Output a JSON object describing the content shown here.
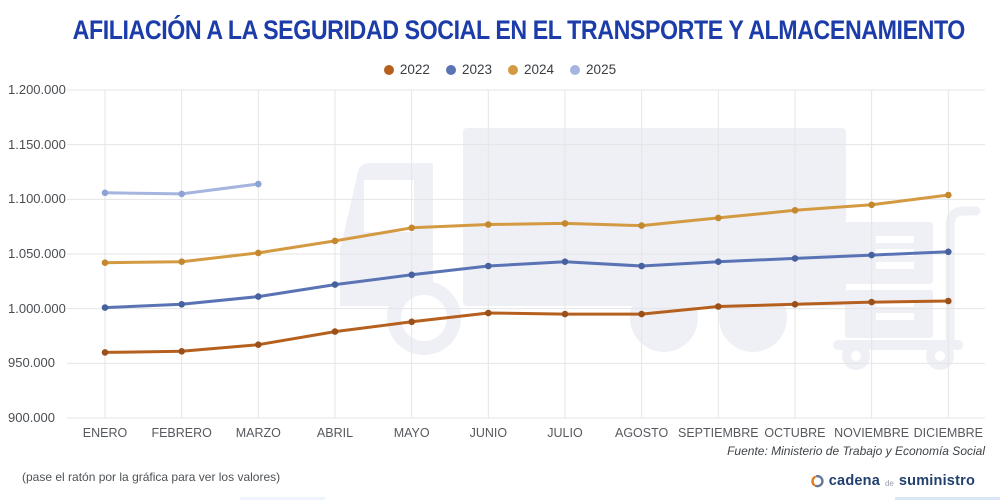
{
  "title": "AFILIACIÓN A LA SEGURIDAD SOCIAL EN EL TRANSPORTE Y ALMACENAMIENTO",
  "hint": "(pase el ratón por la gráfica para ver los valores)",
  "source": "Fuente: Ministerio de Trabajo y Economía Social",
  "logo": {
    "word1": "cadena",
    "word2": "de",
    "word3": "suministro"
  },
  "colors": {
    "title": "#1c3da9",
    "grid": "#e5e5e5",
    "axis_label": "#4a4e52",
    "watermark": "#eef0f6",
    "logo_orange": "#e07b22",
    "logo_slate": "#64789a"
  },
  "chart_data": {
    "type": "line",
    "categories": [
      "ENERO",
      "FEBRERO",
      "MARZO",
      "ABRIL",
      "MAYO",
      "JUNIO",
      "JULIO",
      "AGOSTO",
      "SEPTIEMBRE",
      "OCTUBRE",
      "NOVIEMBRE",
      "DICIEMBRE"
    ],
    "series": [
      {
        "name": "2022",
        "color": "#b6601f",
        "dot_color": "#99501a",
        "values": [
          960000,
          961000,
          967000,
          979000,
          988000,
          996000,
          995000,
          995000,
          1002000,
          1004000,
          1006000,
          1007000
        ]
      },
      {
        "name": "2023",
        "color": "#5a73b5",
        "dot_color": "#47609e",
        "values": [
          1001000,
          1004000,
          1011000,
          1022000,
          1031000,
          1039000,
          1043000,
          1039000,
          1043000,
          1046000,
          1049000,
          1052000
        ]
      },
      {
        "name": "2024",
        "color": "#d39a42",
        "dot_color": "#c4882e",
        "values": [
          1042000,
          1043000,
          1051000,
          1062000,
          1074000,
          1077000,
          1078000,
          1076000,
          1083000,
          1090000,
          1095000,
          1104000
        ]
      },
      {
        "name": "2025",
        "color": "#a6b5e0",
        "dot_color": "#8ea2d6",
        "values": [
          1106000,
          1105000,
          1114000,
          null,
          null,
          null,
          null,
          null,
          null,
          null,
          null,
          null
        ]
      }
    ],
    "ylim": [
      900000,
      1200000
    ],
    "ytick_step": 50000,
    "grid": true,
    "legend_position": "top",
    "xlabel": "",
    "ylabel": ""
  }
}
